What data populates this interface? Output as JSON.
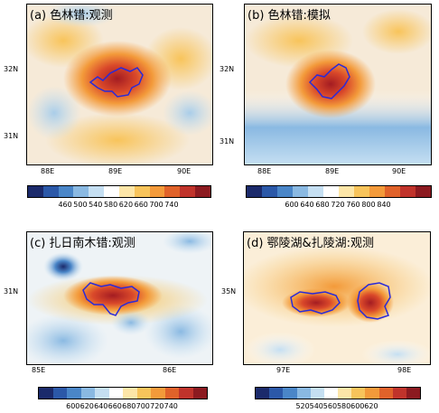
{
  "panels": [
    {
      "title": "(a) 色林错:观测",
      "lon_ticks": [
        "88E",
        "89E",
        "90E"
      ],
      "lat_ticks": [
        "32N",
        "31N"
      ],
      "colorbar_labels": [
        "460",
        "500",
        "540",
        "580",
        "620",
        "660",
        "700",
        "740"
      ],
      "colorbar_colors": [
        "#1b2a6b",
        "#2b58a8",
        "#4a86c8",
        "#8ab9e2",
        "#c5dff2",
        "#ffffff",
        "#fde6a8",
        "#f8c45b",
        "#f39a3a",
        "#e0622a",
        "#c0332b",
        "#8c1a20"
      ]
    },
    {
      "title": "(b) 色林错:模拟",
      "lon_ticks": [
        "88E",
        "89E",
        "90E"
      ],
      "lat_ticks": [
        "32N",
        "31N"
      ],
      "colorbar_labels": [
        "600",
        "640",
        "680",
        "720",
        "760",
        "800",
        "840"
      ],
      "colorbar_colors": [
        "#1b2a6b",
        "#2b58a8",
        "#4a86c8",
        "#8ab9e2",
        "#c5dff2",
        "#ffffff",
        "#fde6a8",
        "#f8c45b",
        "#f39a3a",
        "#e0622a",
        "#c0332b",
        "#8c1a20"
      ]
    },
    {
      "title": "(c) 扎日南木错:观测",
      "lon_ticks": [
        "85E",
        "86E"
      ],
      "lat_ticks": [
        "31N"
      ],
      "colorbar_labels": [
        "600",
        "620",
        "640",
        "660",
        "680",
        "700",
        "720",
        "740"
      ],
      "colorbar_colors": [
        "#1b2a6b",
        "#2b58a8",
        "#4a86c8",
        "#8ab9e2",
        "#c5dff2",
        "#ffffff",
        "#fde6a8",
        "#f8c45b",
        "#f39a3a",
        "#e0622a",
        "#c0332b",
        "#8c1a20"
      ]
    },
    {
      "title": "(d) 鄂陵湖&扎陵湖:观测",
      "lon_ticks": [
        "97E",
        "98E"
      ],
      "lat_ticks": [
        "35N"
      ],
      "colorbar_labels": [
        "520",
        "540",
        "560",
        "580",
        "600",
        "620"
      ],
      "colorbar_colors": [
        "#1b2a6b",
        "#2b58a8",
        "#4a86c8",
        "#8ab9e2",
        "#c5dff2",
        "#ffffff",
        "#fde6a8",
        "#f8c45b",
        "#f39a3a",
        "#e0622a",
        "#c0332b",
        "#8c1a20"
      ]
    }
  ]
}
